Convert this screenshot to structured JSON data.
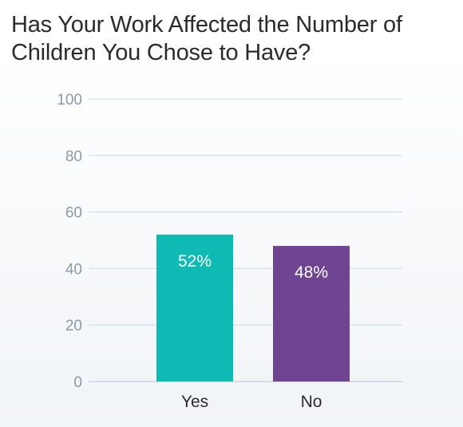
{
  "title_lines": [
    "Has Your Work Affected the Number of",
    "Children You Chose to Have?"
  ],
  "chart_data": {
    "type": "bar",
    "title": "Has Your Work Affected the Number of Children You Chose to Have?",
    "categories": [
      "Yes",
      "No"
    ],
    "values": [
      52,
      48
    ],
    "data_labels": [
      "52%",
      "48%"
    ],
    "colors": [
      "#0fbab4",
      "#6f4591"
    ],
    "ylim": [
      0,
      100
    ],
    "yticks": [
      0,
      20,
      40,
      60,
      80,
      100
    ],
    "grid": true,
    "xlabel": "",
    "ylabel": ""
  }
}
